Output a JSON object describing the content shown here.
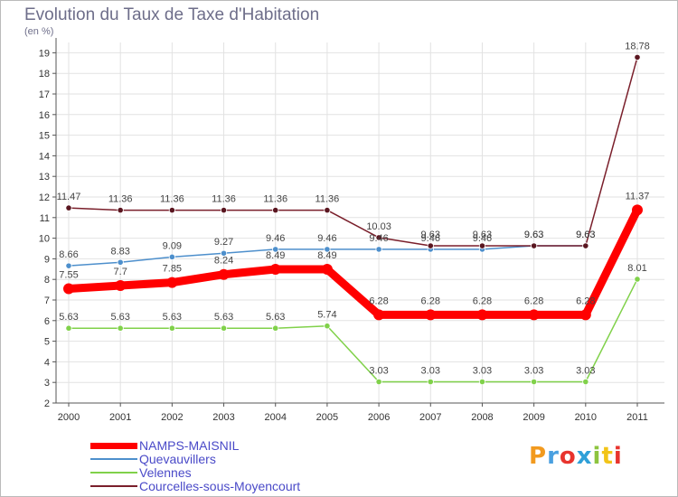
{
  "header": {
    "title": "Evolution du Taux de Taxe d'Habitation",
    "subtitle": "(en %)"
  },
  "chart_data": {
    "type": "line",
    "x": [
      "2000",
      "2001",
      "2002",
      "2003",
      "2004",
      "2005",
      "2006",
      "2007",
      "2008",
      "2009",
      "2010",
      "2011"
    ],
    "ylim": [
      2,
      19.5
    ],
    "yticks": [
      2,
      3,
      4,
      5,
      6,
      7,
      8,
      9,
      10,
      11,
      12,
      13,
      14,
      15,
      16,
      17,
      18,
      19
    ],
    "grid": true,
    "series": [
      {
        "name": "NAMPS-MAISNIL",
        "color": "#ff0000",
        "values": [
          7.55,
          7.7,
          7.85,
          8.24,
          8.49,
          8.49,
          6.28,
          6.28,
          6.28,
          6.28,
          6.28,
          11.37
        ],
        "labels": [
          "7.55",
          "7.7",
          "7.85",
          "8.24",
          "8.49",
          "8.49",
          "6.28",
          "6.28",
          "6.28",
          "6.28",
          "6.28",
          "11.37"
        ]
      },
      {
        "name": "Quevauvillers",
        "color": "#4d8fcc",
        "values": [
          8.66,
          8.83,
          9.09,
          9.27,
          9.46,
          9.46,
          9.46,
          9.46,
          9.46,
          9.63,
          9.63,
          null
        ],
        "labels": [
          "8.66",
          "8.83",
          "9.09",
          "9.27",
          "9.46",
          "9.46",
          "9.46",
          "9.46",
          "9.46",
          "9.63",
          "9.63",
          ""
        ]
      },
      {
        "name": "Velennes",
        "color": "#80d14a",
        "values": [
          5.63,
          5.63,
          5.63,
          5.63,
          5.63,
          5.74,
          3.03,
          3.03,
          3.03,
          3.03,
          3.03,
          8.01
        ],
        "labels": [
          "5.63",
          "5.63",
          "5.63",
          "5.63",
          "5.63",
          "5.74",
          "3.03",
          "3.03",
          "3.03",
          "3.03",
          "3.03",
          "8.01"
        ]
      },
      {
        "name": "Courcelles-sous-Moyencourt",
        "color": "#7a1f2b",
        "values": [
          11.47,
          11.36,
          11.36,
          11.36,
          11.36,
          11.36,
          10.03,
          9.63,
          9.63,
          9.63,
          9.63,
          18.78
        ],
        "labels": [
          "11.47",
          "11.36",
          "11.36",
          "11.36",
          "11.36",
          "11.36",
          "10.03",
          "9.63",
          "9.63",
          "9.63",
          "9.63",
          "18.78"
        ]
      }
    ]
  },
  "logo": {
    "text": "Proxiti"
  }
}
